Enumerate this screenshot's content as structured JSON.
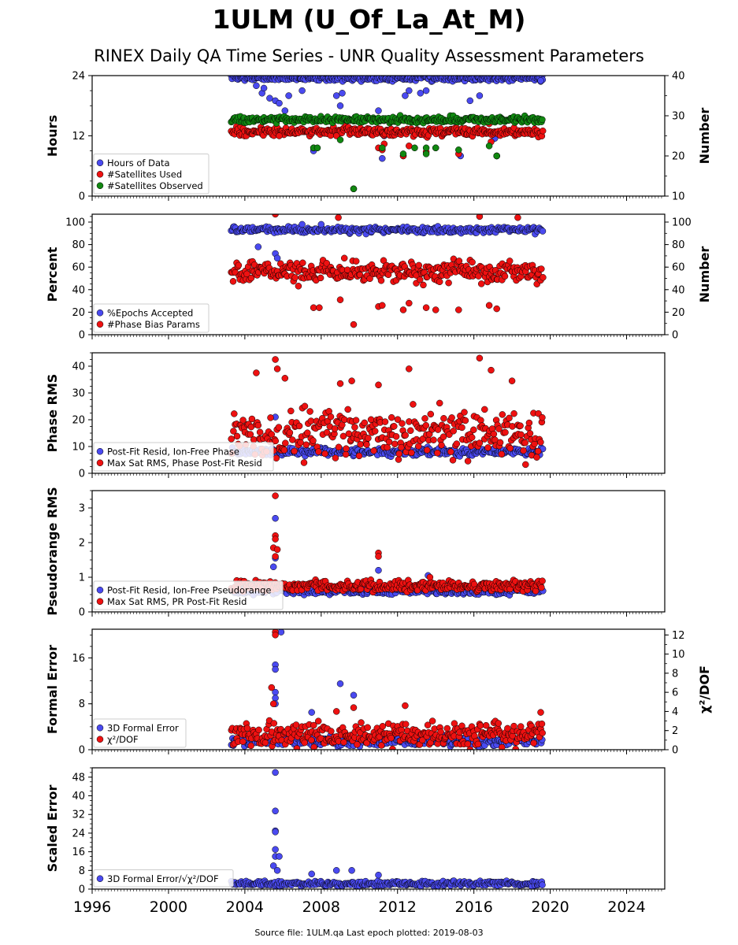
{
  "title": "1ULM (U_Of_La_At_M)",
  "subtitle": "RINEX Daily QA Time Series - UNR Quality Assessment Parameters",
  "footer": "Source file: 1ULM.qa Last epoch plotted: 2019-08-03",
  "colors": {
    "blue": "#4a4af0",
    "red": "#ee1111",
    "green": "#118811"
  },
  "chart_data": [
    {
      "type": "scatter",
      "ylabel": "Hours",
      "ylabel_right": "Number",
      "xlim": [
        1996,
        2026
      ],
      "ylim": [
        0,
        24
      ],
      "yticks": [
        0,
        12,
        24
      ],
      "ylim_right": [
        10,
        40
      ],
      "yticks_right": [
        10,
        20,
        30,
        40
      ],
      "legend": "lower-left",
      "series": [
        {
          "name": "Hours of Data",
          "color": "blue",
          "axis": "left",
          "start": 2003.3,
          "end": 2019.6,
          "typical": 23.5,
          "spread": 0.4,
          "outliers": [
            [
              2004.6,
              22.0
            ],
            [
              2004.9,
              20.5
            ],
            [
              2005.0,
              21.5
            ],
            [
              2005.3,
              19.5
            ],
            [
              2005.6,
              19.0
            ],
            [
              2005.8,
              18.5
            ],
            [
              2006.1,
              17.0
            ],
            [
              2006.3,
              20.0
            ],
            [
              2007.0,
              21.0
            ],
            [
              2007.6,
              9.0
            ],
            [
              2008.8,
              20.0
            ],
            [
              2009.0,
              18.0
            ],
            [
              2009.1,
              20.5
            ],
            [
              2011.0,
              17.0
            ],
            [
              2011.2,
              7.5
            ],
            [
              2011.3,
              12.0
            ],
            [
              2012.3,
              8.0
            ],
            [
              2012.4,
              20.0
            ],
            [
              2012.6,
              21.0
            ],
            [
              2013.2,
              20.5
            ],
            [
              2013.5,
              21.0
            ],
            [
              2015.3,
              8.0
            ],
            [
              2015.8,
              19.0
            ],
            [
              2016.3,
              20.0
            ],
            [
              2017.1,
              11.5
            ],
            [
              2017.2,
              8.0
            ],
            [
              2019.5,
              23.0
            ]
          ]
        },
        {
          "name": "#Satellites Used",
          "color": "red",
          "axis": "right",
          "start": 2003.3,
          "end": 2019.6,
          "typical": 26.0,
          "spread": 0.8,
          "outliers": [
            [
              2005.8,
              25.0
            ],
            [
              2007.6,
              22.0
            ],
            [
              2008.8,
              25.0
            ],
            [
              2009.7,
              11.8
            ],
            [
              2011.0,
              22.0
            ],
            [
              2011.2,
              21.5
            ],
            [
              2011.3,
              23.0
            ],
            [
              2012.3,
              20.0
            ],
            [
              2012.6,
              22.5
            ],
            [
              2013.5,
              21.0
            ],
            [
              2014.0,
              22.0
            ],
            [
              2015.2,
              20.5
            ],
            [
              2016.8,
              28.0
            ],
            [
              2016.9,
              23.5
            ],
            [
              2017.2,
              20.0
            ]
          ]
        },
        {
          "name": "#Satellites Observed",
          "color": "green",
          "axis": "right",
          "start": 2003.3,
          "end": 2019.6,
          "typical": 29.0,
          "spread": 0.6,
          "outliers": [
            [
              2007.6,
              22.0
            ],
            [
              2007.8,
              22.0
            ],
            [
              2009.0,
              24.0
            ],
            [
              2009.7,
              11.8
            ],
            [
              2011.2,
              22.0
            ],
            [
              2012.3,
              20.5
            ],
            [
              2012.9,
              22.0
            ],
            [
              2013.5,
              22.0
            ],
            [
              2013.5,
              20.5
            ],
            [
              2014.0,
              22.0
            ],
            [
              2015.2,
              21.5
            ],
            [
              2016.8,
              22.5
            ],
            [
              2017.2,
              20.0
            ]
          ]
        }
      ]
    },
    {
      "type": "scatter",
      "ylabel": "Percent",
      "ylabel_right": "Number",
      "xlim": [
        1996,
        2026
      ],
      "ylim": [
        0,
        107
      ],
      "yticks": [
        0,
        20,
        40,
        60,
        80,
        100
      ],
      "ylim_right": [
        0,
        107
      ],
      "yticks_right": [
        0,
        20,
        40,
        60,
        80,
        100
      ],
      "legend": "lower-left",
      "series": [
        {
          "name": "%Epochs Accepted",
          "color": "blue",
          "axis": "left",
          "start": 2003.3,
          "end": 2019.6,
          "typical": 93.0,
          "spread": 2.0,
          "outliers": [
            [
              2004.7,
              78.0
            ],
            [
              2005.6,
              72.0
            ],
            [
              2005.7,
              68.0
            ],
            [
              2007.0,
              98.0
            ],
            [
              2008.0,
              98.0
            ]
          ]
        },
        {
          "name": "#Phase Bias Params",
          "color": "red",
          "axis": "right",
          "start": 2003.3,
          "end": 2019.6,
          "typical": 56.0,
          "spread": 7.0,
          "outliers": [
            [
              2005.6,
              107.0
            ],
            [
              2007.6,
              24.0
            ],
            [
              2007.9,
              24.0
            ],
            [
              2008.9,
              104.0
            ],
            [
              2009.0,
              31.0
            ],
            [
              2009.7,
              9.0
            ],
            [
              2011.0,
              25.0
            ],
            [
              2011.2,
              26.0
            ],
            [
              2012.3,
              22.0
            ],
            [
              2012.6,
              28.0
            ],
            [
              2013.5,
              24.0
            ],
            [
              2014.0,
              22.0
            ],
            [
              2015.2,
              22.0
            ],
            [
              2016.3,
              105.0
            ],
            [
              2016.8,
              26.0
            ],
            [
              2017.2,
              23.0
            ],
            [
              2018.3,
              104.0
            ]
          ]
        }
      ]
    },
    {
      "type": "scatter",
      "ylabel": "Phase RMS",
      "xlim": [
        1996,
        2026
      ],
      "ylim": [
        0,
        45
      ],
      "yticks": [
        0,
        10,
        20,
        30,
        40
      ],
      "legend": "lower-left",
      "series": [
        {
          "name": "Post-Fit Resid, Ion-Free Phase",
          "color": "blue",
          "start": 2003.3,
          "end": 2019.6,
          "typical": 8.0,
          "spread": 1.0,
          "outliers": [
            [
              2005.6,
              21.0
            ]
          ]
        },
        {
          "name": "Max Sat RMS, Phase Post-Fit Resid",
          "color": "red",
          "start": 2003.3,
          "end": 2019.6,
          "typical": 15.0,
          "spread": 6.5,
          "outliers": [
            [
              2004.6,
              37.5
            ],
            [
              2005.6,
              42.5
            ],
            [
              2005.7,
              39.0
            ],
            [
              2006.1,
              35.5
            ],
            [
              2009.0,
              33.5
            ],
            [
              2009.6,
              34.5
            ],
            [
              2011.0,
              33.0
            ],
            [
              2012.6,
              39.0
            ],
            [
              2016.3,
              43.0
            ],
            [
              2016.9,
              38.5
            ],
            [
              2018.0,
              34.5
            ]
          ]
        }
      ]
    },
    {
      "type": "scatter",
      "ylabel": "Pseudorange RMS",
      "xlim": [
        1996,
        2026
      ],
      "ylim": [
        0,
        3.5
      ],
      "yticks": [
        0,
        1,
        2,
        3
      ],
      "legend": "lower-left",
      "series": [
        {
          "name": "Post-Fit Resid, Ion-Free Pseudorange",
          "color": "blue",
          "start": 2003.3,
          "end": 2019.6,
          "typical": 0.6,
          "spread": 0.07,
          "outliers": [
            [
              2005.6,
              2.7
            ],
            [
              2005.6,
              1.55
            ],
            [
              2005.5,
              1.3
            ],
            [
              2011.0,
              1.2
            ],
            [
              2013.6,
              1.05
            ]
          ]
        },
        {
          "name": "Max Sat RMS, PR Post-Fit Resid",
          "color": "red",
          "start": 2003.3,
          "end": 2019.6,
          "typical": 0.75,
          "spread": 0.12,
          "outliers": [
            [
              2005.6,
              3.35
            ],
            [
              2005.6,
              2.2
            ],
            [
              2005.6,
              2.1
            ],
            [
              2005.5,
              1.85
            ],
            [
              2005.7,
              1.8
            ],
            [
              2005.6,
              1.6
            ],
            [
              2011.0,
              1.7
            ],
            [
              2011.0,
              1.6
            ],
            [
              2013.7,
              1.0
            ]
          ]
        }
      ]
    },
    {
      "type": "scatter",
      "ylabel": "Formal Error",
      "ylabel_right": "χ²/DOF",
      "xlim": [
        1996,
        2026
      ],
      "ylim": [
        0,
        21
      ],
      "yticks": [
        0,
        8,
        16
      ],
      "ylim_right": [
        0,
        12.6
      ],
      "yticks_right": [
        0,
        2,
        4,
        6,
        8,
        10,
        12
      ],
      "legend": "lower-left",
      "series": [
        {
          "name": "3D Formal Error",
          "color": "blue",
          "axis": "left",
          "start": 2003.3,
          "end": 2019.6,
          "typical": 1.5,
          "spread": 0.6,
          "outliers": [
            [
              2005.6,
              14.8
            ],
            [
              2005.6,
              14.0
            ],
            [
              2005.6,
              10.0
            ],
            [
              2005.6,
              9.0
            ],
            [
              2005.6,
              8.0
            ],
            [
              2005.9,
              20.5
            ],
            [
              2007.5,
              6.5
            ],
            [
              2009.0,
              11.5
            ],
            [
              2009.7,
              9.5
            ]
          ]
        },
        {
          "name": "χ²/DOF",
          "color": "red",
          "axis": "right",
          "start": 2003.3,
          "end": 2019.6,
          "typical": 1.6,
          "spread": 0.9,
          "outliers": [
            [
              2005.6,
              12.3
            ],
            [
              2005.6,
              12.0
            ],
            [
              2005.4,
              6.5
            ],
            [
              2005.5,
              4.8
            ],
            [
              2008.8,
              4.0
            ],
            [
              2009.7,
              4.4
            ],
            [
              2012.4,
              4.6
            ],
            [
              2019.5,
              3.9
            ]
          ]
        }
      ]
    },
    {
      "type": "scatter",
      "ylabel": "Scaled Error",
      "xlim": [
        1996,
        2026
      ],
      "ylim": [
        0,
        52
      ],
      "yticks": [
        0,
        8,
        16,
        24,
        32,
        40,
        48
      ],
      "legend": "lower-left",
      "xticks": [
        1996,
        2000,
        2004,
        2008,
        2012,
        2016,
        2020,
        2024
      ],
      "series": [
        {
          "name": "3D Formal Error/√χ²/DOF",
          "color": "blue",
          "start": 2003.3,
          "end": 2019.6,
          "typical": 2.3,
          "spread": 0.8,
          "outliers": [
            [
              2005.6,
              50.0
            ],
            [
              2005.6,
              33.5
            ],
            [
              2005.6,
              25.0
            ],
            [
              2005.6,
              24.5
            ],
            [
              2005.6,
              17.0
            ],
            [
              2005.6,
              14.0
            ],
            [
              2005.8,
              14.0
            ],
            [
              2005.5,
              10.0
            ],
            [
              2005.7,
              8.0
            ],
            [
              2007.5,
              6.5
            ],
            [
              2008.8,
              8.0
            ],
            [
              2009.6,
              8.0
            ],
            [
              2011.0,
              6.0
            ]
          ]
        }
      ]
    }
  ]
}
